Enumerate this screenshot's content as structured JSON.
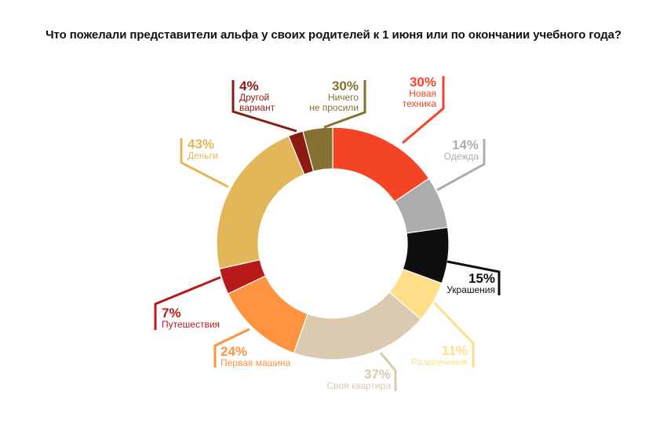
{
  "chart_data": {
    "type": "pie",
    "subtype": "donut",
    "title": "Что пожелали представители альфа у своих родителей к 1 июня или по окончании учебного года?",
    "unit": "%",
    "slices": [
      {
        "label": "Новая техника",
        "value": 30,
        "color": "#F44325"
      },
      {
        "label": "Одежда",
        "value": 14,
        "color": "#ADADAD"
      },
      {
        "label": "Украшения",
        "value": 15,
        "color": "#0F0F0F"
      },
      {
        "label": "Развлечения",
        "value": 11,
        "color": "#FFDE8A"
      },
      {
        "label": "Своя квартира",
        "value": 37,
        "color": "#D9CAB0"
      },
      {
        "label": "Первая машина",
        "value": 24,
        "color": "#FF9340"
      },
      {
        "label": "Путешествия",
        "value": 7,
        "color": "#B81A1A"
      },
      {
        "label": "Деньги",
        "value": 43,
        "color": "#E3B65A"
      },
      {
        "label": "Другой вариант",
        "value": 4,
        "color": "#8B1A14"
      },
      {
        "label": "Ничего не просили",
        "value": 30,
        "color": "#857132"
      }
    ]
  }
}
